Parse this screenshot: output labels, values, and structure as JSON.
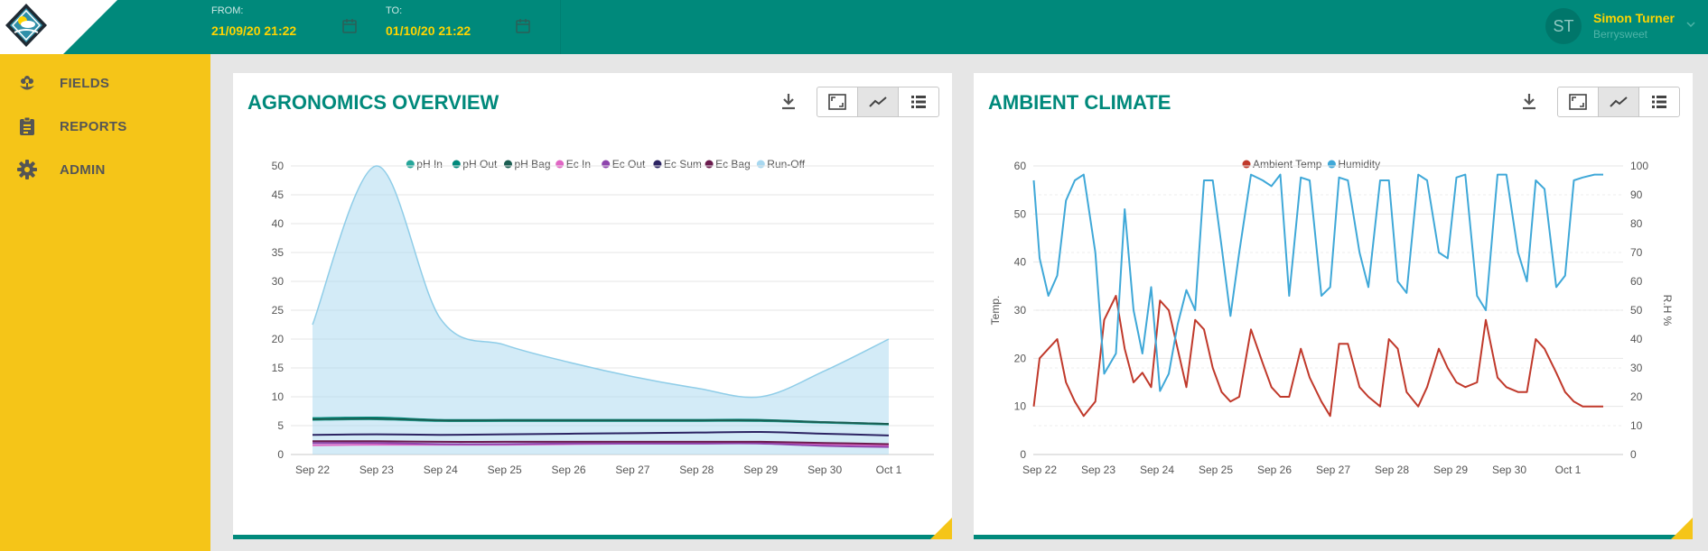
{
  "header": {
    "from_label": "FROM:",
    "from_value": "21/09/20 21:22",
    "to_label": "TO:",
    "to_value": "01/10/20 21:22",
    "user_initials": "ST",
    "user_name": "Simon Turner",
    "user_org": "Berrysweet"
  },
  "sidebar": {
    "items": [
      {
        "label": "FIELDS",
        "icon": "flower-icon"
      },
      {
        "label": "REPORTS",
        "icon": "clipboard-icon"
      },
      {
        "label": "ADMIN",
        "icon": "gear-icon"
      }
    ]
  },
  "colors": {
    "brand": "#00897b",
    "accent": "#f5c518",
    "highlight": "#ffd400"
  },
  "panels": {
    "agronomics": {
      "title": "AGRONOMICS OVERVIEW"
    },
    "climate": {
      "title": "AMBIENT CLIMATE"
    }
  },
  "chart_data": [
    {
      "type": "area",
      "categories": [
        "Sep 22",
        "Sep 23",
        "Sep 24",
        "Sep 25",
        "Sep 26",
        "Sep 27",
        "Sep 28",
        "Sep 29",
        "Sep 30",
        "Oct 1"
      ],
      "ylim": [
        0,
        50
      ],
      "yticks": [
        0,
        5,
        10,
        15,
        20,
        25,
        30,
        35,
        40,
        45,
        50
      ],
      "legend_position": "top",
      "grid": true,
      "series": [
        {
          "name": "pH In",
          "color": "#26a69a",
          "type": "line",
          "x": [
            22,
            23,
            24,
            25,
            26,
            27,
            28,
            29,
            30,
            31
          ],
          "values": [
            6.0,
            6.1,
            5.8,
            5.8,
            5.8,
            5.8,
            5.8,
            5.8,
            5.5,
            5.2
          ]
        },
        {
          "name": "pH Out",
          "color": "#00897b",
          "type": "line",
          "x": [
            22,
            23,
            24,
            25,
            26,
            27,
            28,
            29,
            30,
            31
          ],
          "values": [
            6.3,
            6.4,
            6.0,
            6.0,
            6.0,
            6.0,
            6.0,
            6.0,
            5.6,
            5.3
          ]
        },
        {
          "name": "pH Bag",
          "color": "#1b5e52",
          "type": "line",
          "x": [
            22,
            23,
            24,
            25,
            26,
            27,
            28,
            29,
            30,
            31
          ],
          "values": [
            6.1,
            6.2,
            5.9,
            5.9,
            5.9,
            5.9,
            5.9,
            5.9,
            5.6,
            5.3
          ]
        },
        {
          "name": "Ec In",
          "color": "#e066c4",
          "type": "line",
          "x": [
            22,
            23,
            24,
            25,
            26,
            27,
            28,
            29,
            30,
            31
          ],
          "values": [
            1.6,
            1.7,
            1.7,
            1.7,
            1.8,
            1.9,
            1.9,
            2.0,
            1.8,
            1.6
          ]
        },
        {
          "name": "Ec Out",
          "color": "#8e44ad",
          "type": "line",
          "x": [
            22,
            23,
            24,
            25,
            26,
            27,
            28,
            29,
            30,
            31
          ],
          "values": [
            2.0,
            2.0,
            1.8,
            1.8,
            1.9,
            1.9,
            1.9,
            1.9,
            1.5,
            1.3
          ]
        },
        {
          "name": "Ec Sum",
          "color": "#2c2463",
          "type": "line",
          "x": [
            22,
            23,
            24,
            25,
            26,
            27,
            28,
            29,
            30,
            31
          ],
          "values": [
            3.4,
            3.5,
            3.4,
            3.5,
            3.6,
            3.7,
            3.8,
            3.9,
            3.6,
            3.3
          ]
        },
        {
          "name": "Ec Bag",
          "color": "#6a1b4d",
          "type": "line",
          "x": [
            22,
            23,
            24,
            25,
            26,
            27,
            28,
            29,
            30,
            31
          ],
          "values": [
            2.3,
            2.3,
            2.2,
            2.2,
            2.2,
            2.2,
            2.2,
            2.2,
            2.0,
            1.8
          ]
        },
        {
          "name": "Run-Off",
          "color": "#a8d8f0",
          "type": "area",
          "x": [
            22,
            23,
            24,
            25,
            26,
            27,
            28,
            29,
            30,
            31
          ],
          "values": [
            22.5,
            50,
            23.5,
            19,
            16,
            13.5,
            11.5,
            10,
            14.5,
            20
          ]
        }
      ]
    },
    {
      "type": "line",
      "categories": [
        "Sep 22",
        "Sep 23",
        "Sep 24",
        "Sep 25",
        "Sep 26",
        "Sep 27",
        "Sep 28",
        "Sep 29",
        "Sep 30",
        "Oct 1"
      ],
      "ylabel": "Temp.",
      "y2label": "R.H %",
      "ylim": [
        0,
        60
      ],
      "yticks": [
        0,
        10,
        20,
        30,
        40,
        50,
        60
      ],
      "y2lim": [
        0,
        100
      ],
      "y2ticks": [
        0,
        10,
        20,
        30,
        40,
        50,
        60,
        70,
        80,
        90,
        100
      ],
      "legend_position": "top",
      "grid": true,
      "series": [
        {
          "name": "Ambient Temp",
          "color": "#c0392b",
          "axis": "left",
          "x": [
            21.9,
            22.0,
            22.15,
            22.3,
            22.45,
            22.6,
            22.75,
            22.95,
            23.1,
            23.3,
            23.45,
            23.6,
            23.75,
            23.9,
            24.05,
            24.2,
            24.35,
            24.5,
            24.65,
            24.8,
            24.95,
            25.1,
            25.25,
            25.4,
            25.6,
            25.8,
            25.95,
            26.1,
            26.25,
            26.45,
            26.6,
            26.8,
            26.95,
            27.1,
            27.25,
            27.45,
            27.6,
            27.8,
            27.95,
            28.1,
            28.25,
            28.45,
            28.6,
            28.8,
            28.95,
            29.1,
            29.25,
            29.45,
            29.6,
            29.8,
            29.95,
            30.15,
            30.3,
            30.45,
            30.6,
            30.8,
            30.95,
            31.1,
            31.25,
            31.45,
            31.6
          ],
          "values": [
            10,
            20,
            22,
            24,
            15,
            11,
            8,
            11,
            28,
            33,
            22,
            15,
            17,
            14,
            32,
            30,
            22,
            14,
            28,
            26,
            18,
            13,
            11,
            12,
            26,
            19,
            14,
            12,
            12,
            22,
            16,
            11,
            8,
            23,
            23,
            14,
            12,
            10,
            24,
            22,
            13,
            10,
            14,
            22,
            18,
            15,
            14,
            15,
            28,
            16,
            14,
            13,
            13,
            24,
            22,
            17,
            13,
            11,
            10,
            10,
            10
          ]
        },
        {
          "name": "Humidity",
          "color": "#3fa8d8",
          "axis": "right",
          "x": [
            21.9,
            22.0,
            22.15,
            22.3,
            22.45,
            22.6,
            22.75,
            22.95,
            23.1,
            23.3,
            23.45,
            23.6,
            23.75,
            23.9,
            24.05,
            24.2,
            24.35,
            24.5,
            24.65,
            24.8,
            24.95,
            25.1,
            25.25,
            25.4,
            25.6,
            25.8,
            25.95,
            26.1,
            26.25,
            26.45,
            26.6,
            26.8,
            26.95,
            27.1,
            27.25,
            27.45,
            27.6,
            27.8,
            27.95,
            28.1,
            28.25,
            28.45,
            28.6,
            28.8,
            28.95,
            29.1,
            29.25,
            29.45,
            29.6,
            29.8,
            29.95,
            30.15,
            30.3,
            30.45,
            30.6,
            30.8,
            30.95,
            31.1,
            31.25,
            31.45,
            31.6
          ],
          "values": [
            95,
            68,
            55,
            62,
            88,
            95,
            97,
            70,
            28,
            35,
            85,
            50,
            35,
            58,
            22,
            28,
            45,
            57,
            50,
            95,
            95,
            72,
            48,
            70,
            97,
            95,
            93,
            97,
            55,
            96,
            95,
            55,
            58,
            96,
            95,
            70,
            58,
            95,
            95,
            60,
            56,
            97,
            95,
            70,
            68,
            96,
            97,
            55,
            50,
            97,
            97,
            70,
            60,
            95,
            92,
            58,
            62,
            95,
            96,
            97,
            97
          ]
        }
      ]
    }
  ]
}
